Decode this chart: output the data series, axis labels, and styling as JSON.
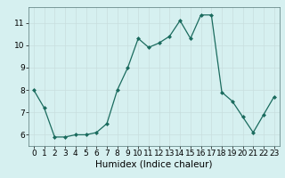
{
  "x": [
    0,
    1,
    2,
    3,
    4,
    5,
    6,
    7,
    8,
    9,
    10,
    11,
    12,
    13,
    14,
    15,
    16,
    17,
    18,
    19,
    20,
    21,
    22,
    23
  ],
  "y": [
    8.0,
    7.2,
    5.9,
    5.9,
    6.0,
    6.0,
    6.1,
    6.5,
    8.0,
    9.0,
    10.3,
    9.9,
    10.1,
    10.4,
    11.1,
    10.3,
    11.35,
    11.35,
    7.9,
    7.5,
    6.8,
    6.1,
    6.9,
    7.7
  ],
  "xlabel": "Humidex (Indice chaleur)",
  "ylim": [
    5.5,
    11.7
  ],
  "xlim": [
    -0.5,
    23.5
  ],
  "yticks": [
    6,
    7,
    8,
    9,
    10,
    11
  ],
  "xticks": [
    0,
    1,
    2,
    3,
    4,
    5,
    6,
    7,
    8,
    9,
    10,
    11,
    12,
    13,
    14,
    15,
    16,
    17,
    18,
    19,
    20,
    21,
    22,
    23
  ],
  "line_color": "#1a6b5e",
  "marker_color": "#1a6b5e",
  "bg_color": "#d6f0f0",
  "grid_color": "#c8dede",
  "xlabel_fontsize": 7.5,
  "tick_fontsize": 6.5
}
